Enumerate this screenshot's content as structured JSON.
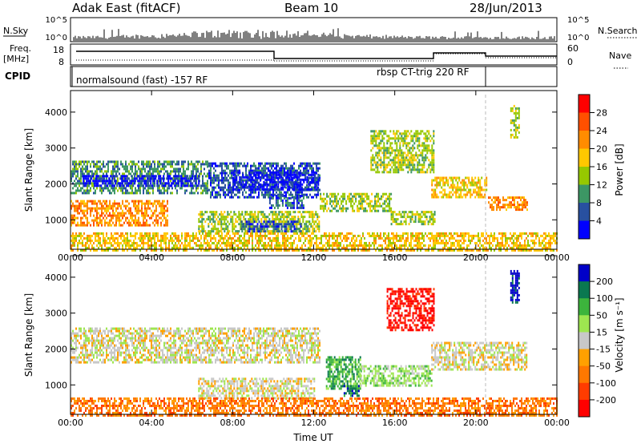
{
  "header": {
    "station": "Adak East (fitACF)",
    "beam": "Beam 10",
    "date": "28/Jun/2013"
  },
  "nsky_panel": {
    "left_label": "N.Sky",
    "right_label": "N.Search",
    "left_ticks": [
      "10^5",
      "10^0"
    ],
    "right_ticks": [
      "10^5",
      "10^0"
    ]
  },
  "freq_panel": {
    "label_line1": "Freq.",
    "label_line2": "[MHz]",
    "left_ticks": [
      "18",
      "8"
    ],
    "right_label": "Nave",
    "right_ticks": [
      "60",
      "0"
    ]
  },
  "cpid_panel": {
    "label": "CPID",
    "mode_left": "normalsound (fast) -157 RF",
    "mode_right": "rbsp CT-trig 220 RF"
  },
  "chart_data": [
    {
      "type": "heatmap",
      "title": "",
      "xlabel": "",
      "ylabel": "Slant Range [km]",
      "x_ticks": [
        "00:00",
        "04:00",
        "08:00",
        "12:00",
        "16:00",
        "20:00",
        "00:00"
      ],
      "y_ticks": [
        1000,
        2000,
        3000,
        4000
      ],
      "xlim_hours": [
        0,
        24
      ],
      "ylim_km": [
        180,
        4600
      ],
      "colorbar": {
        "label": "Power [dB]",
        "ticks": [
          "28",
          "24",
          "20",
          "16",
          "12",
          "8",
          "4"
        ],
        "colors": [
          "#ff0000",
          "#ff5000",
          "#ff8c00",
          "#ffc800",
          "#96c800",
          "#3c9664",
          "#2850a0",
          "#0000ff"
        ]
      },
      "echo_regions": [
        {
          "t0": 0.0,
          "t1": 6.8,
          "r0": 1750,
          "r1": 2650,
          "level": 5
        },
        {
          "t0": 0.6,
          "t1": 6.3,
          "r0": 1950,
          "r1": 2250,
          "level": 7
        },
        {
          "t0": 6.8,
          "t1": 12.3,
          "r0": 1600,
          "r1": 2600,
          "level": 6
        },
        {
          "t0": 8.0,
          "t1": 12.2,
          "r0": 1850,
          "r1": 2350,
          "level": 7
        },
        {
          "t0": 9.8,
          "t1": 11.5,
          "r0": 1350,
          "r1": 1700,
          "level": 6
        },
        {
          "t0": 6.3,
          "t1": 12.3,
          "r0": 650,
          "r1": 1250,
          "level": 4
        },
        {
          "t0": 8.4,
          "t1": 11.4,
          "r0": 680,
          "r1": 980,
          "level": 6
        },
        {
          "t0": 12.3,
          "t1": 15.8,
          "r0": 1250,
          "r1": 1750,
          "level": 4
        },
        {
          "t0": 15.8,
          "t1": 18.0,
          "r0": 900,
          "r1": 1250,
          "level": 4
        },
        {
          "t0": 0.0,
          "t1": 4.8,
          "r0": 850,
          "r1": 1550,
          "level": 2
        },
        {
          "t0": 14.8,
          "t1": 17.9,
          "r0": 2300,
          "r1": 3500,
          "level": 4
        },
        {
          "t0": 17.8,
          "t1": 20.5,
          "r0": 1650,
          "r1": 2200,
          "level": 3
        },
        {
          "t0": 20.6,
          "t1": 22.5,
          "r0": 1300,
          "r1": 1650,
          "level": 2
        },
        {
          "t0": 21.7,
          "t1": 22.1,
          "r0": 3300,
          "r1": 4200,
          "level": 4
        },
        {
          "t0": 0.0,
          "t1": 24.0,
          "r0": 180,
          "r1": 650,
          "level": 3
        }
      ]
    },
    {
      "type": "heatmap",
      "title": "",
      "xlabel": "Time UT",
      "ylabel": "Slant Range [km]",
      "x_ticks": [
        "00:00",
        "04:00",
        "08:00",
        "12:00",
        "16:00",
        "20:00",
        "00:00"
      ],
      "y_ticks": [
        1000,
        2000,
        3000,
        4000
      ],
      "xlim_hours": [
        0,
        24
      ],
      "ylim_km": [
        180,
        4600
      ],
      "colorbar": {
        "label": "Velocity [m s⁻¹]",
        "ticks": [
          "200",
          "100",
          "50",
          "15",
          "-15",
          "-50",
          "-100",
          "-200"
        ],
        "colors": [
          "#0000c8",
          "#0a7850",
          "#3cb43c",
          "#9ee650",
          "#c8c8c8",
          "#ffa000",
          "#ff7800",
          "#ff3c00",
          "#ff0000"
        ]
      },
      "echo_regions": [
        {
          "t0": 0.0,
          "t1": 12.3,
          "r0": 1600,
          "r1": 2600,
          "level": 4
        },
        {
          "t0": 6.3,
          "t1": 12.0,
          "r0": 650,
          "r1": 1200,
          "level": 4
        },
        {
          "t0": 12.6,
          "t1": 14.3,
          "r0": 900,
          "r1": 1800,
          "level": 2
        },
        {
          "t0": 13.4,
          "t1": 14.2,
          "r0": 700,
          "r1": 1000,
          "level": 1
        },
        {
          "t0": 14.3,
          "t1": 17.8,
          "r0": 1000,
          "r1": 1550,
          "level": 3
        },
        {
          "t0": 15.6,
          "t1": 17.9,
          "r0": 2500,
          "r1": 3700,
          "level": 8
        },
        {
          "t0": 17.8,
          "t1": 22.5,
          "r0": 1400,
          "r1": 2200,
          "level": 4
        },
        {
          "t0": 21.7,
          "t1": 22.1,
          "r0": 3300,
          "r1": 4200,
          "level": 0
        },
        {
          "t0": 0.0,
          "t1": 24.0,
          "r0": 180,
          "r1": 650,
          "level": 6
        }
      ]
    }
  ]
}
